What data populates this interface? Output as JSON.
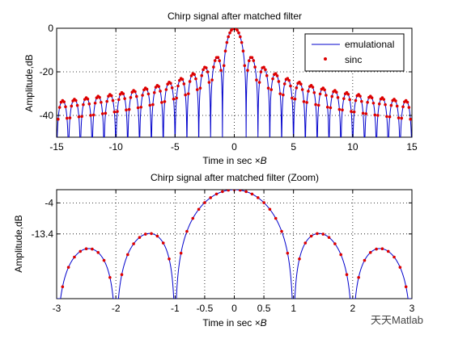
{
  "chart_data": [
    {
      "type": "line",
      "title": "Chirp signal after matched filter",
      "xlabel_text": "Time in sec ",
      "xlabel_var": "×B",
      "ylabel": "Amplitude,dB",
      "xlim": [
        -15,
        15
      ],
      "ylim": [
        -50,
        0
      ],
      "xticks": [
        "-15",
        "-10",
        "-5",
        "0",
        "5",
        "10",
        "15"
      ],
      "xtick_values": [
        -15,
        -10,
        -5,
        0,
        5,
        10,
        15
      ],
      "yticks": [
        "0",
        "-20",
        "-40"
      ],
      "ytick_values": [
        0,
        -20,
        -40
      ],
      "grid": true,
      "legend_placement": "top-right",
      "series": [
        {
          "name": "emulational",
          "style": "solid line",
          "color": "#0000cc"
        },
        {
          "name": "sinc",
          "style": "dot markers",
          "color": "#dd0000"
        }
      ],
      "function": "20*log10(|sin(pi*x)/(pi*x)|), floored at -50 dB"
    },
    {
      "type": "line",
      "title": "Chirp signal after matched filter (Zoom)",
      "xlabel_text": "Time in sec ",
      "xlabel_var": "×B",
      "ylabel": "Amplitude,dB",
      "xlim": [
        -3,
        3
      ],
      "ylim": [
        -33,
        0
      ],
      "xticks": [
        "-3",
        "-2",
        "-1",
        "-0.5",
        "0",
        "0.5",
        "1",
        "2",
        "3"
      ],
      "xtick_values": [
        -3,
        -2,
        -1,
        -0.5,
        0,
        0.5,
        1,
        2,
        3
      ],
      "yticks": [
        "-4",
        "-13.4"
      ],
      "ytick_values": [
        -4,
        -13.4
      ],
      "grid": true,
      "series": [
        {
          "name": "emulational",
          "style": "solid line",
          "color": "#0000cc"
        },
        {
          "name": "sinc",
          "style": "dot markers",
          "color": "#dd0000"
        }
      ],
      "function": "20*log10(|sin(pi*x)/(pi*x)|), floored at -33 dB"
    }
  ],
  "watermark": "天天Matlab"
}
